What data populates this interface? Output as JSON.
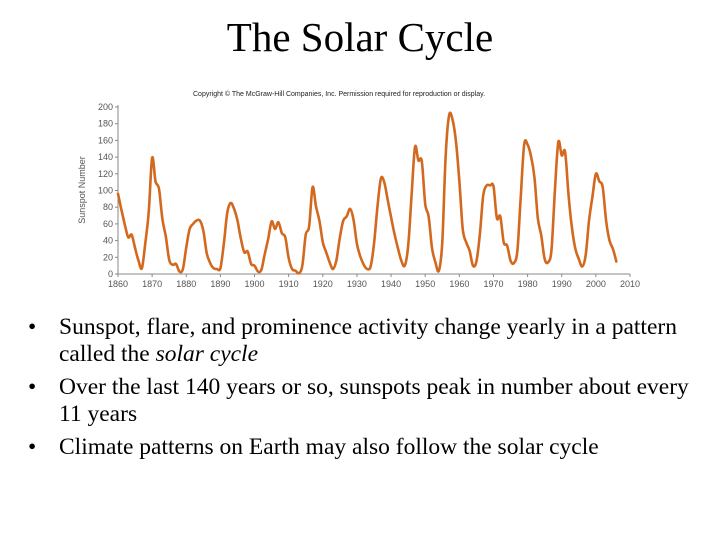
{
  "slide": {
    "title": "The Solar Cycle",
    "bullets": [
      {
        "before": "Sunspot, flare, and prominence activity change yearly in a pattern called the ",
        "italic": "solar cycle",
        "after": ""
      },
      {
        "before": "Over the last 140 years or so, sunspots peak in number about every 11 years",
        "italic": "",
        "after": ""
      },
      {
        "before": "Climate patterns on Earth may also follow the solar cycle",
        "italic": "",
        "after": ""
      }
    ],
    "bullet_glyph": "•"
  },
  "chart_data": {
    "type": "line",
    "title": "",
    "copyright": "Copyright © The McGraw-Hill Companies, Inc. Permission required for reproduction or display.",
    "xlabel": "",
    "ylabel": "Sunspot Number",
    "xlim": [
      1860,
      2010
    ],
    "ylim": [
      0,
      200
    ],
    "x_ticks": [
      1860,
      1870,
      1880,
      1890,
      1900,
      1910,
      1920,
      1930,
      1940,
      1950,
      1960,
      1970,
      1980,
      1990,
      2000,
      2010
    ],
    "y_ticks": [
      0,
      20,
      40,
      60,
      80,
      100,
      120,
      140,
      160,
      180,
      200
    ],
    "line_color": "#d2691e",
    "series": [
      {
        "x": [
          1860,
          1861,
          1862,
          1863,
          1864,
          1865,
          1866,
          1867,
          1868,
          1869,
          1870,
          1871,
          1872,
          1873,
          1874,
          1875,
          1876,
          1877,
          1878,
          1879,
          1880,
          1881,
          1882,
          1883,
          1884,
          1885,
          1886,
          1887,
          1888,
          1889,
          1890,
          1891,
          1892,
          1893,
          1894,
          1895,
          1896,
          1897,
          1898,
          1899,
          1900,
          1901,
          1902,
          1903,
          1904,
          1905,
          1906,
          1907,
          1908,
          1909,
          1910,
          1911,
          1912,
          1913,
          1914,
          1915,
          1916,
          1917,
          1918,
          1919,
          1920,
          1921,
          1922,
          1923,
          1924,
          1925,
          1926,
          1927,
          1928,
          1929,
          1930,
          1931,
          1932,
          1933,
          1934,
          1935,
          1936,
          1937,
          1938,
          1939,
          1940,
          1941,
          1942,
          1943,
          1944,
          1945,
          1946,
          1947,
          1948,
          1949,
          1950,
          1951,
          1952,
          1953,
          1954,
          1955,
          1956,
          1957,
          1958,
          1959,
          1960,
          1961,
          1962,
          1963,
          1964,
          1965,
          1966,
          1967,
          1968,
          1969,
          1970,
          1971,
          1972,
          1973,
          1974,
          1975,
          1976,
          1977,
          1978,
          1979,
          1980,
          1981,
          1982,
          1983,
          1984,
          1985,
          1986,
          1987,
          1988,
          1989,
          1990,
          1991,
          1992,
          1993,
          1994,
          1995,
          1996,
          1997,
          1998,
          1999,
          2000,
          2001,
          2002,
          2003,
          2004,
          2005,
          2006
        ],
        "y": [
          96,
          77,
          59,
          44,
          47,
          31,
          16,
          7,
          37,
          74,
          139,
          111,
          102,
          66,
          45,
          17,
          11,
          12,
          3,
          6,
          32,
          54,
          60,
          64,
          64,
          52,
          25,
          13,
          7,
          6,
          7,
          36,
          73,
          85,
          78,
          64,
          42,
          26,
          27,
          12,
          10,
          3,
          5,
          24,
          42,
          63,
          54,
          62,
          49,
          44,
          19,
          6,
          4,
          1,
          10,
          47,
          57,
          104,
          81,
          64,
          38,
          26,
          14,
          6,
          17,
          44,
          64,
          69,
          78,
          65,
          36,
          21,
          11,
          6,
          9,
          36,
          80,
          114,
          110,
          89,
          68,
          48,
          31,
          16,
          10,
          33,
          93,
          152,
          136,
          135,
          84,
          69,
          31,
          14,
          4,
          38,
          142,
          190,
          185,
          159,
          112,
          54,
          38,
          28,
          10,
          15,
          47,
          94,
          106,
          106,
          105,
          67,
          69,
          38,
          34,
          16,
          13,
          28,
          93,
          155,
          155,
          141,
          116,
          67,
          46,
          18,
          14,
          29,
          100,
          158,
          142,
          146,
          94,
          55,
          30,
          18,
          9,
          22,
          64,
          93,
          120,
          111,
          104,
          64,
          40,
          30,
          15
        ]
      }
    ]
  }
}
